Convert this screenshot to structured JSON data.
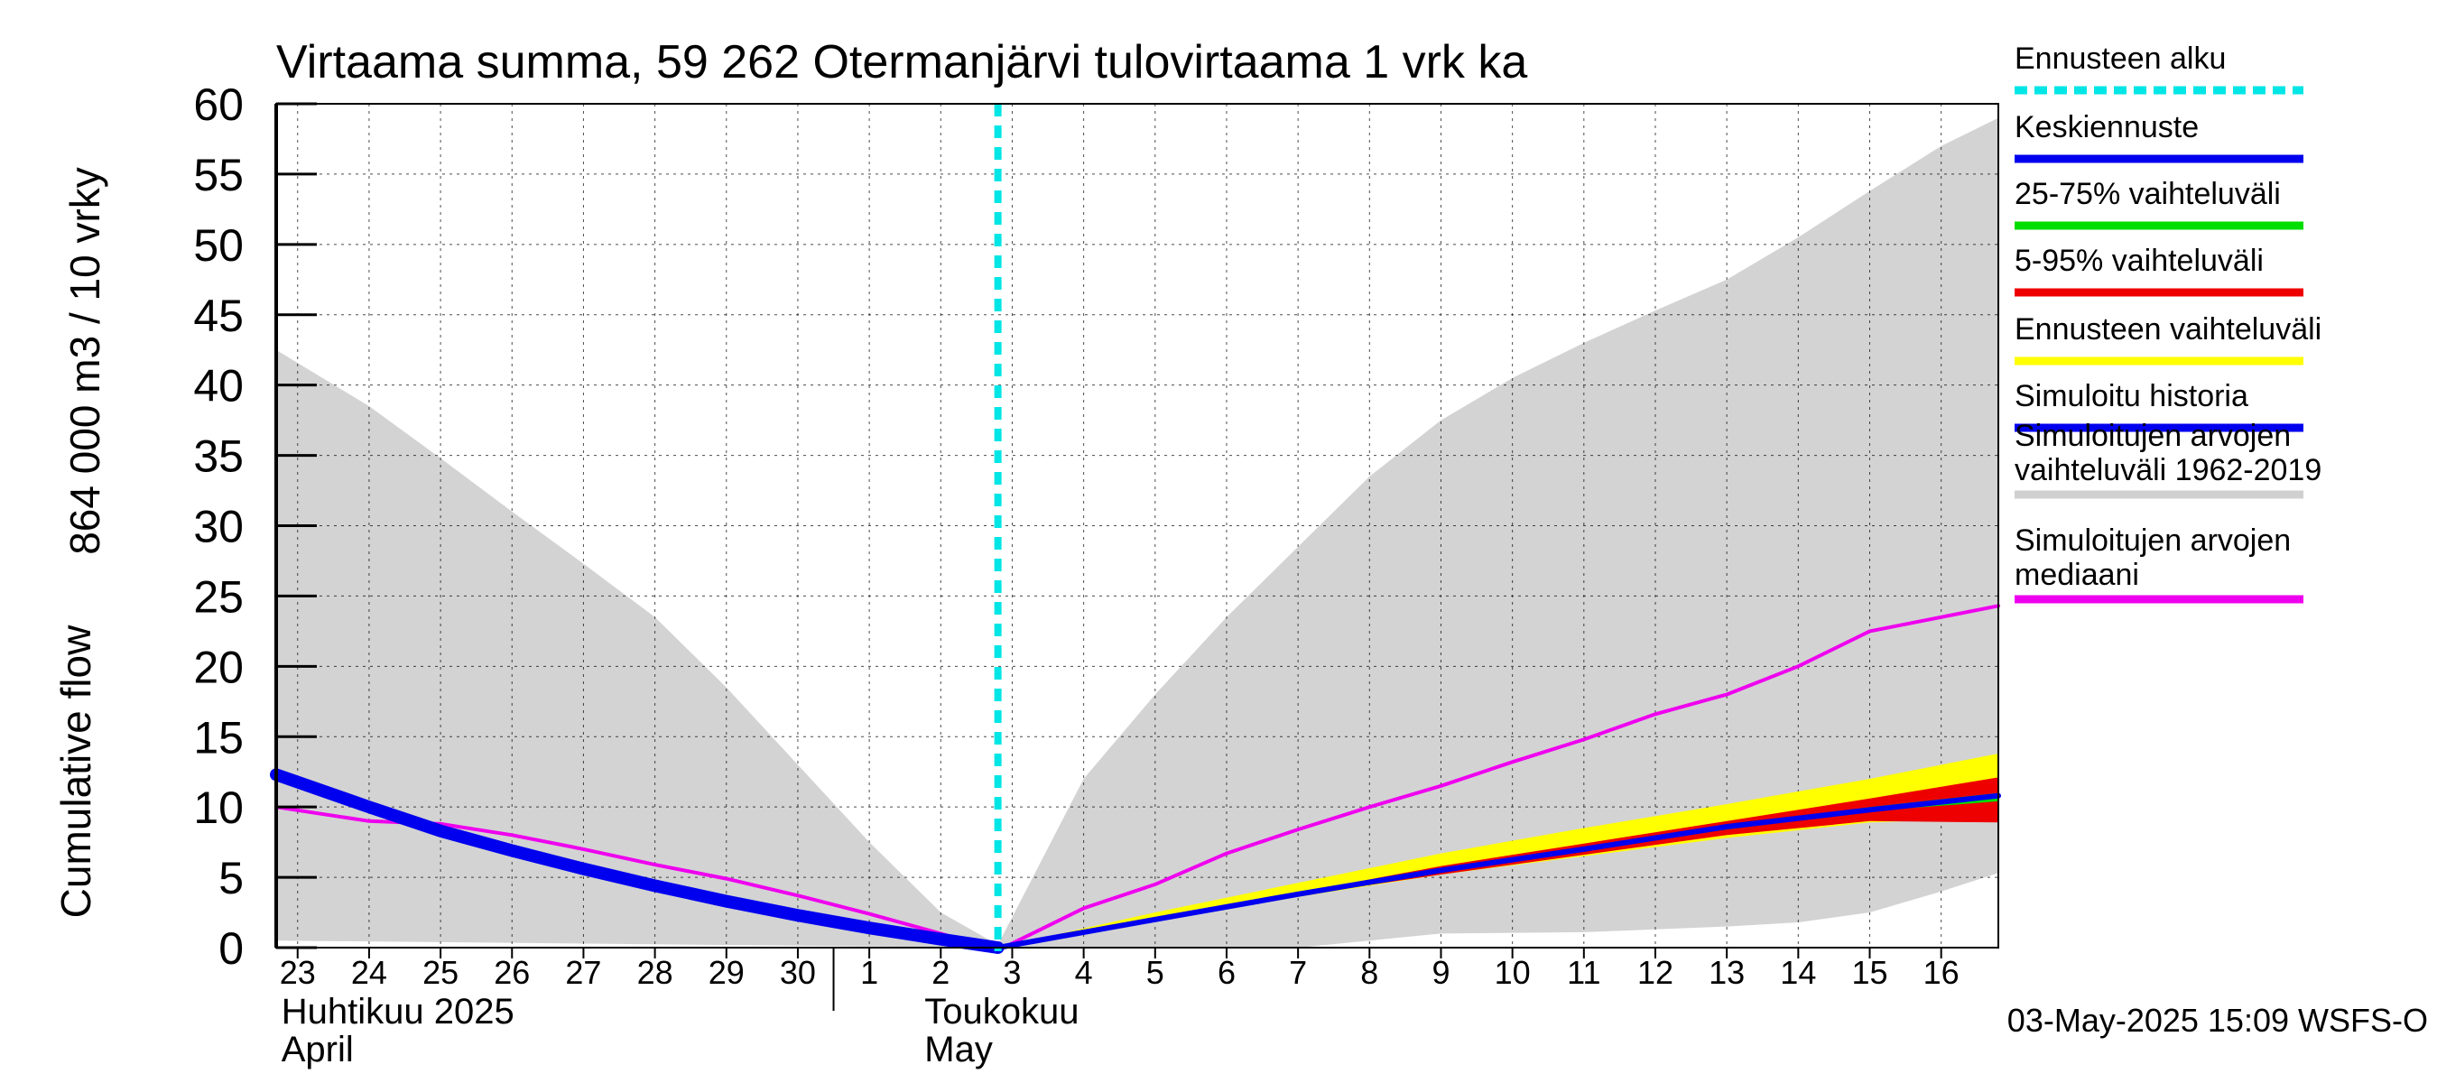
{
  "chart_data": {
    "type": "area",
    "title": "Virtaama summa, 59 262 Otermanjärvi tulovirtaama 1 vrk ka",
    "ylabel_line1": "864 000 m3 / 10 vrky",
    "ylabel_line2": "Cumulative flow",
    "ylim": [
      0,
      60
    ],
    "yticks": [
      0,
      5,
      10,
      15,
      20,
      25,
      30,
      35,
      40,
      45,
      50,
      55,
      60
    ],
    "x_start": "2025-04-23",
    "xlim_days": [
      -0.3,
      23.8
    ],
    "day_labels": [
      "23",
      "24",
      "25",
      "26",
      "27",
      "28",
      "29",
      "30",
      "1",
      "2",
      "3",
      "4",
      "5",
      "6",
      "7",
      "8",
      "9",
      "10",
      "11",
      "12",
      "13",
      "14",
      "15",
      "16"
    ],
    "month_labels": [
      {
        "day": 0,
        "line1": "Huhtikuu  2025",
        "line2": "April"
      },
      {
        "day": 9,
        "line1": "Toukokuu",
        "line2": "May"
      }
    ],
    "month_divider_day": 8,
    "forecast_start_day": 9.8,
    "footer": "03-May-2025 15:09 WSFS-O",
    "legend": [
      {
        "key": "ennusteen_alku",
        "label1": "Ennusteen alku",
        "label2": "",
        "color": "#00e5e5",
        "style": "dashed"
      },
      {
        "key": "keskiennuste",
        "label1": "Keskiennuste",
        "label2": "",
        "color": "#0000ee",
        "style": "line"
      },
      {
        "key": "q25_75",
        "label1": "25-75% vaihteluväli",
        "label2": "",
        "color": "#00dd00",
        "style": "line"
      },
      {
        "key": "q5_95",
        "label1": "5-95% vaihteluväli",
        "label2": "",
        "color": "#ee0000",
        "style": "line"
      },
      {
        "key": "ennuste_range",
        "label1": "Ennusteen vaihteluväli",
        "label2": "",
        "color": "#ffff00",
        "style": "line"
      },
      {
        "key": "sim_hist",
        "label1": "Simuloitu historia",
        "label2": "",
        "color": "#0000ee",
        "style": "line"
      },
      {
        "key": "sim_range",
        "label1": "Simuloitujen arvojen",
        "label2": "vaihteluväli 1962-2019",
        "color": "#d0d0d0",
        "style": "line"
      },
      {
        "key": "sim_median",
        "label1": "Simuloitujen arvojen",
        "label2": "mediaani",
        "color": "#ee00ee",
        "style": "line"
      }
    ],
    "series": {
      "hist_range_upper": {
        "x": [
          -0.3,
          1,
          2,
          3,
          4,
          5,
          6,
          7,
          8,
          9,
          9.8,
          11,
          12,
          13,
          14,
          15,
          16,
          17,
          18,
          19,
          20,
          21,
          22,
          23,
          23.8
        ],
        "y": [
          42.5,
          38.5,
          34.8,
          31,
          27.3,
          23.5,
          18.5,
          13,
          7.5,
          2.5,
          0.2,
          12,
          18,
          23.5,
          28.5,
          33.5,
          37.5,
          40.5,
          43,
          45.3,
          47.5,
          50.5,
          53.8,
          57,
          59
        ]
      },
      "hist_range_lower": {
        "x": [
          -0.3,
          9.8,
          12,
          14,
          16,
          18,
          20,
          21,
          22,
          23,
          23.8
        ],
        "y": [
          0.5,
          0,
          0,
          0,
          1,
          1.1,
          1.5,
          1.8,
          2.5,
          4,
          5.3
        ]
      },
      "sim_median": {
        "x": [
          -0.3,
          1,
          2,
          3,
          4,
          5,
          6,
          7,
          8,
          9,
          9.8,
          11,
          12,
          13,
          14,
          15,
          16,
          17,
          18,
          19,
          20,
          21,
          22,
          23,
          23.8
        ],
        "y": [
          10,
          9,
          8.8,
          8,
          7,
          5.9,
          4.9,
          3.7,
          2.4,
          1,
          -0.2,
          2.8,
          4.5,
          6.7,
          8.4,
          10,
          11.5,
          13.2,
          14.8,
          16.6,
          18,
          20,
          22.5,
          23.5,
          24.3
        ]
      },
      "sim_history": {
        "x": [
          -0.3,
          1,
          2,
          3,
          4,
          5,
          6,
          7,
          8,
          9,
          9.8
        ],
        "y": [
          12.3,
          10,
          8.3,
          6.9,
          5.6,
          4.4,
          3.3,
          2.3,
          1.4,
          0.6,
          0
        ]
      },
      "forecast_range_upper": {
        "x": [
          9.8,
          12,
          14,
          16,
          18,
          20,
          22,
          23.8
        ],
        "y": [
          0,
          2.5,
          4.6,
          6.7,
          8.5,
          10.2,
          12,
          13.8
        ]
      },
      "forecast_range_lower": {
        "x": [
          9.8,
          12,
          14,
          16,
          18,
          20,
          22,
          23.8
        ],
        "y": [
          0,
          1.9,
          3.6,
          5.2,
          6.5,
          7.8,
          8.9,
          9.2
        ]
      },
      "q5_95_upper": {
        "x": [
          9.8,
          12,
          14,
          16,
          18,
          20,
          22,
          23.8
        ],
        "y": [
          0,
          2.1,
          3.9,
          5.8,
          7.4,
          9,
          10.6,
          12.1
        ]
      },
      "q5_95_lower": {
        "x": [
          9.8,
          12,
          14,
          16,
          18,
          20,
          22,
          23.8
        ],
        "y": [
          0,
          1.9,
          3.7,
          5.2,
          6.6,
          8,
          9,
          8.9
        ]
      },
      "q25_75_upper": {
        "x": [
          9.8,
          12,
          14,
          16,
          18,
          20,
          22,
          23.8
        ],
        "y": [
          0,
          2.0,
          3.8,
          5.6,
          7.1,
          8.7,
          10.0,
          11.0
        ]
      },
      "q25_75_lower": {
        "x": [
          9.8,
          12,
          14,
          16,
          18,
          20,
          22,
          23.8
        ],
        "y": [
          0,
          1.9,
          3.7,
          5.4,
          6.9,
          8.4,
          9.7,
          10.4
        ]
      },
      "keskiennuste": {
        "x": [
          9.8,
          12,
          14,
          16,
          18,
          20,
          22,
          23.8
        ],
        "y": [
          0,
          2.0,
          3.8,
          5.5,
          7.0,
          8.6,
          9.8,
          10.8
        ]
      }
    }
  }
}
